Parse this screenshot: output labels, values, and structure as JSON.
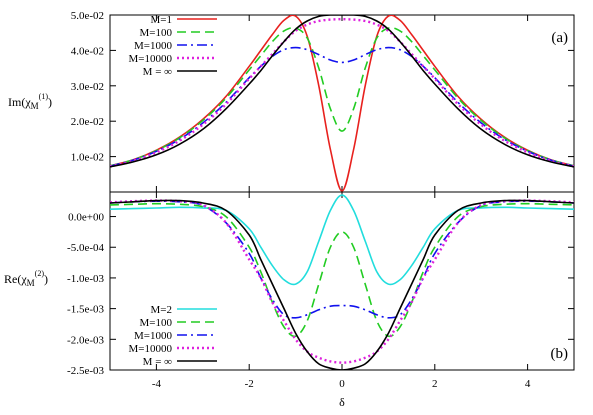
{
  "chart_data": [
    {
      "panel": "(a)",
      "type": "line",
      "ylabel": "Im(χM(1))",
      "ylabel_base": "Im(χ",
      "ylabel_sub": "M",
      "ylabel_sup": "(1)",
      "ylabel_close": ")",
      "xlim": [
        -5,
        5
      ],
      "ylim": [
        0,
        0.05
      ],
      "yticks": [
        0.01,
        0.02,
        0.03,
        0.04,
        0.05
      ],
      "ytick_labels": [
        "1.0e-02",
        "2.0e-02",
        "3.0e-02",
        "4.0e-02",
        "5.0e-02"
      ],
      "xticks": [
        -4,
        -2,
        0,
        2,
        4
      ],
      "legend_position": "top-left",
      "series": [
        {
          "name": "M=1",
          "color": "#e8211e",
          "dash": "solid",
          "x": [
            -5,
            -4.5,
            -4,
            -3.5,
            -3,
            -2.5,
            -2,
            -1.75,
            -1.5,
            -1.25,
            -1,
            -0.75,
            -0.5,
            -0.25,
            0,
            0.25,
            0.5,
            0.75,
            1,
            1.25,
            1.5,
            1.75,
            2,
            2.5,
            3,
            3.5,
            4,
            4.5,
            5
          ],
          "y": [
            0.0074,
            0.0091,
            0.0118,
            0.0155,
            0.0205,
            0.027,
            0.0355,
            0.04,
            0.0445,
            0.0485,
            0.0497,
            0.044,
            0.03,
            0.012,
            0.0003,
            0.012,
            0.03,
            0.044,
            0.0497,
            0.0485,
            0.0445,
            0.04,
            0.0355,
            0.027,
            0.0205,
            0.0155,
            0.0118,
            0.0091,
            0.0074
          ]
        },
        {
          "name": "M=100",
          "color": "#22cc22",
          "dash": "long-dash",
          "x": [
            -5,
            -4.5,
            -4,
            -3.5,
            -3,
            -2.5,
            -2,
            -1.75,
            -1.5,
            -1.25,
            -1,
            -0.75,
            -0.5,
            -0.25,
            0,
            0.25,
            0.5,
            0.75,
            1,
            1.25,
            1.5,
            1.75,
            2,
            2.5,
            3,
            3.5,
            4,
            4.5,
            5
          ],
          "y": [
            0.0074,
            0.0091,
            0.0117,
            0.0153,
            0.0202,
            0.0265,
            0.0345,
            0.0385,
            0.0425,
            0.0455,
            0.0463,
            0.0435,
            0.035,
            0.0235,
            0.0172,
            0.0235,
            0.035,
            0.0435,
            0.0463,
            0.0455,
            0.0425,
            0.0385,
            0.0345,
            0.0265,
            0.0202,
            0.0153,
            0.0117,
            0.0091,
            0.0074
          ]
        },
        {
          "name": "M=1000",
          "color": "#1111ee",
          "dash": "dash-dot",
          "x": [
            -5,
            -4.5,
            -4,
            -3.5,
            -3,
            -2.5,
            -2,
            -1.75,
            -1.5,
            -1.25,
            -1,
            -0.75,
            -0.5,
            -0.25,
            0,
            0.25,
            0.5,
            0.75,
            1,
            1.25,
            1.5,
            1.75,
            2,
            2.5,
            3,
            3.5,
            4,
            4.5,
            5
          ],
          "y": [
            0.0073,
            0.009,
            0.0115,
            0.0149,
            0.0195,
            0.0253,
            0.0323,
            0.0355,
            0.0383,
            0.0402,
            0.0408,
            0.0402,
            0.0388,
            0.0373,
            0.0366,
            0.0373,
            0.0388,
            0.0402,
            0.0408,
            0.0402,
            0.0383,
            0.0355,
            0.0323,
            0.0253,
            0.0195,
            0.0149,
            0.0115,
            0.009,
            0.0073
          ]
        },
        {
          "name": "M=10000",
          "color": "#dd22dd",
          "dash": "dotted",
          "x": [
            -5,
            -4.5,
            -4,
            -3.5,
            -3,
            -2.5,
            -2,
            -1.75,
            -1.5,
            -1.25,
            -1,
            -0.75,
            -0.5,
            -0.25,
            0,
            0.25,
            0.5,
            0.75,
            1,
            1.25,
            1.5,
            1.75,
            2,
            2.5,
            3,
            3.5,
            4,
            4.5,
            5
          ],
          "y": [
            0.0072,
            0.0088,
            0.0112,
            0.0145,
            0.019,
            0.0248,
            0.032,
            0.0355,
            0.039,
            0.0425,
            0.0455,
            0.0473,
            0.0483,
            0.0487,
            0.0488,
            0.0487,
            0.0483,
            0.0473,
            0.0455,
            0.0425,
            0.039,
            0.0355,
            0.032,
            0.0248,
            0.019,
            0.0145,
            0.0112,
            0.0088,
            0.0072
          ]
        },
        {
          "name": "M = ∞",
          "color": "#000000",
          "dash": "solid",
          "x": [
            -5,
            -4.5,
            -4,
            -3.5,
            -3,
            -2.5,
            -2,
            -1.75,
            -1.5,
            -1.25,
            -1,
            -0.75,
            -0.5,
            -0.25,
            0,
            0.25,
            0.5,
            0.75,
            1,
            1.25,
            1.5,
            1.75,
            2,
            2.5,
            3,
            3.5,
            4,
            4.5,
            5
          ],
          "y": [
            0.0071,
            0.0085,
            0.0105,
            0.0135,
            0.0177,
            0.0235,
            0.0305,
            0.0343,
            0.0385,
            0.0425,
            0.046,
            0.0483,
            0.0496,
            0.05,
            0.05,
            0.05,
            0.0496,
            0.0483,
            0.046,
            0.0425,
            0.0385,
            0.0343,
            0.0305,
            0.0235,
            0.0177,
            0.0135,
            0.0105,
            0.0085,
            0.0071
          ]
        }
      ]
    },
    {
      "panel": "(b)",
      "type": "line",
      "xlabel": "δ",
      "ylabel": "Re(χM(2))",
      "ylabel_base": "Re(χ",
      "ylabel_sub": "M",
      "ylabel_sup": "(2)",
      "ylabel_close": ")",
      "xlim": [
        -5,
        5
      ],
      "ylim": [
        -0.0025,
        0.0004
      ],
      "yticks": [
        0,
        -0.0005,
        -0.001,
        -0.0015,
        -0.002,
        -0.0025
      ],
      "ytick_labels": [
        "0.0e+00",
        "-5.0e-04",
        "-1.0e-03",
        "-1.5e-03",
        "-2.0e-03",
        "-2.5e-03"
      ],
      "xticks": [
        -4,
        -2,
        0,
        2,
        4
      ],
      "xtick_labels": [
        "-4",
        "-2",
        "0",
        "2",
        "4"
      ],
      "legend_position": "bottom-left",
      "series": [
        {
          "name": "M=2",
          "color": "#22dddd",
          "dash": "solid",
          "x": [
            -5,
            -4.5,
            -4,
            -3.5,
            -3,
            -2.5,
            -2,
            -1.75,
            -1.5,
            -1.25,
            -1,
            -0.75,
            -0.5,
            -0.25,
            0,
            0.25,
            0.5,
            0.75,
            1,
            1.25,
            1.5,
            1.75,
            2,
            2.5,
            3,
            3.5,
            4,
            4.5,
            5
          ],
          "y": [
            0.00012,
            0.00013,
            0.00014,
            0.00015,
            0.00014,
            0.0001,
            -0.0002,
            -0.0005,
            -0.0008,
            -0.00103,
            -0.0011,
            -0.0009,
            -0.0004,
            0.0001,
            0.00035,
            0.0001,
            -0.0004,
            -0.0009,
            -0.0011,
            -0.00103,
            -0.0008,
            -0.0005,
            -0.0002,
            0.0001,
            0.00014,
            0.00015,
            0.00014,
            0.00013,
            0.00012
          ]
        },
        {
          "name": "M=100",
          "color": "#22cc22",
          "dash": "long-dash",
          "x": [
            -5,
            -4.5,
            -4,
            -3.5,
            -3,
            -2.5,
            -2,
            -1.75,
            -1.5,
            -1.25,
            -1,
            -0.75,
            -0.5,
            -0.25,
            0,
            0.25,
            0.5,
            0.75,
            1,
            1.25,
            1.5,
            1.75,
            2,
            2.5,
            3,
            3.5,
            4,
            4.5,
            5
          ],
          "y": [
            0.00019,
            0.0002,
            0.00021,
            0.0002,
            0.00016,
            0,
            -0.0005,
            -0.0009,
            -0.0014,
            -0.0018,
            -0.00195,
            -0.0017,
            -0.0011,
            -0.0005,
            -0.00025,
            -0.0005,
            -0.0011,
            -0.0017,
            -0.00195,
            -0.0018,
            -0.0014,
            -0.0009,
            -0.0005,
            0,
            0.00016,
            0.0002,
            0.00021,
            0.0002,
            0.00019
          ]
        },
        {
          "name": "M=1000",
          "color": "#1111ee",
          "dash": "dash-dot",
          "x": [
            -5,
            -4.5,
            -4,
            -3.5,
            -3,
            -2.5,
            -2,
            -1.75,
            -1.5,
            -1.25,
            -1,
            -0.75,
            -0.5,
            -0.25,
            0,
            0.25,
            0.5,
            0.75,
            1,
            1.25,
            1.5,
            1.75,
            2,
            2.5,
            3,
            3.5,
            4,
            4.5,
            5
          ],
          "y": [
            0.00022,
            0.00024,
            0.00025,
            0.00024,
            0.00018,
            -0.0001,
            -0.0006,
            -0.001,
            -0.00135,
            -0.0016,
            -0.00165,
            -0.0016,
            -0.00152,
            -0.00146,
            -0.00145,
            -0.00146,
            -0.00152,
            -0.0016,
            -0.00165,
            -0.0016,
            -0.00135,
            -0.001,
            -0.0006,
            -0.0001,
            0.00018,
            0.00024,
            0.00025,
            0.00024,
            0.00022
          ]
        },
        {
          "name": "M=10000",
          "color": "#dd22dd",
          "dash": "dotted",
          "x": [
            -5,
            -4.5,
            -4,
            -3.5,
            -3,
            -2.5,
            -2,
            -1.75,
            -1.5,
            -1.25,
            -1,
            -0.75,
            -0.5,
            -0.25,
            0,
            0.25,
            0.5,
            0.75,
            1,
            1.25,
            1.5,
            1.75,
            2,
            2.5,
            3,
            3.5,
            4,
            4.5,
            5
          ],
          "y": [
            0.00023,
            0.00025,
            0.00026,
            0.00025,
            0.00019,
            -0.0001,
            -0.0007,
            -0.001,
            -0.0014,
            -0.0017,
            -0.002,
            -0.0022,
            -0.0023,
            -0.00236,
            -0.00238,
            -0.00236,
            -0.0023,
            -0.0022,
            -0.002,
            -0.0017,
            -0.0014,
            -0.001,
            -0.0007,
            -0.0001,
            0.00019,
            0.00025,
            0.00026,
            0.00025,
            0.00023
          ]
        },
        {
          "name": "M = ∞",
          "color": "#000000",
          "dash": "solid",
          "x": [
            -5,
            -4.5,
            -4,
            -3.5,
            -3,
            -2.5,
            -2,
            -1.75,
            -1.5,
            -1.25,
            -1,
            -0.75,
            -0.5,
            -0.25,
            0,
            0.25,
            0.5,
            0.75,
            1,
            1.25,
            1.5,
            1.75,
            2,
            2.5,
            3,
            3.5,
            4,
            4.5,
            5
          ],
          "y": [
            0.00022,
            0.00024,
            0.00026,
            0.00026,
            0.00022,
            0.0001,
            -0.0003,
            -0.0007,
            -0.0011,
            -0.0015,
            -0.0019,
            -0.0022,
            -0.0024,
            -0.00247,
            -0.0025,
            -0.00247,
            -0.0024,
            -0.0022,
            -0.0019,
            -0.0015,
            -0.0011,
            -0.0007,
            -0.0003,
            0.0001,
            0.00022,
            0.00026,
            0.00026,
            0.00024,
            0.00022
          ]
        }
      ]
    }
  ]
}
